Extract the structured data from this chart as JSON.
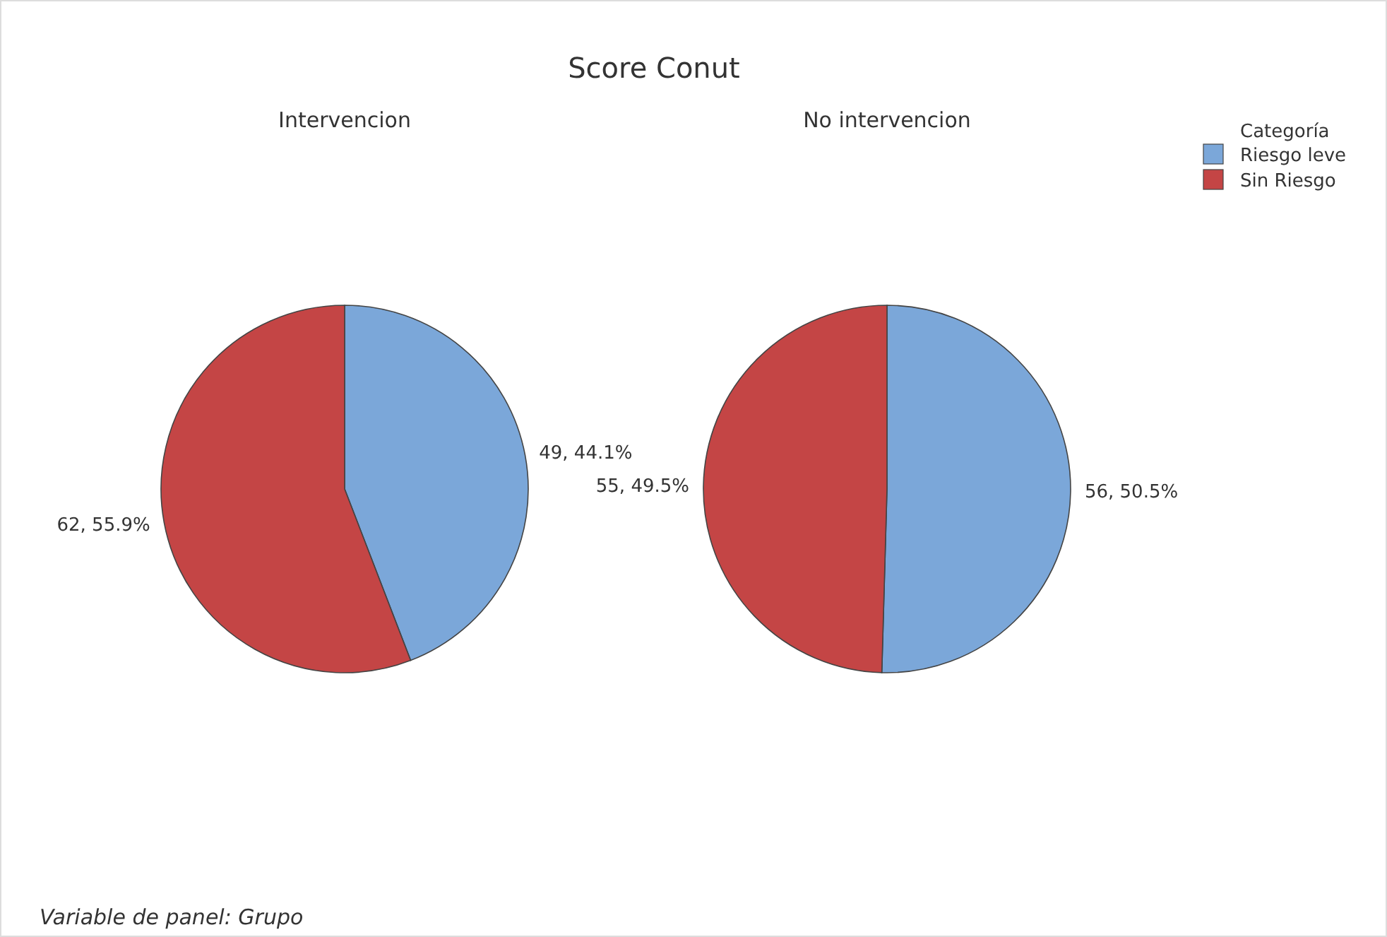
{
  "chart_data": {
    "type": "pie",
    "title": "Score Conut",
    "categories": [
      "Riesgo leve",
      "Sin Riesgo"
    ],
    "colors": [
      "#7ba7d9",
      "#c44545"
    ],
    "series": [
      {
        "name": "Intervencion",
        "values": [
          49,
          62
        ],
        "value_labels": [
          "49, 44.1%",
          "62, 55.9%"
        ]
      },
      {
        "name": "No intervencion",
        "values": [
          56,
          55
        ],
        "value_labels": [
          "56, 50.5%",
          "55, 49.5%"
        ]
      }
    ],
    "annotations": [
      "Variable de panel: Grupo"
    ],
    "legend_title": "Categoría",
    "legend": "top right"
  }
}
